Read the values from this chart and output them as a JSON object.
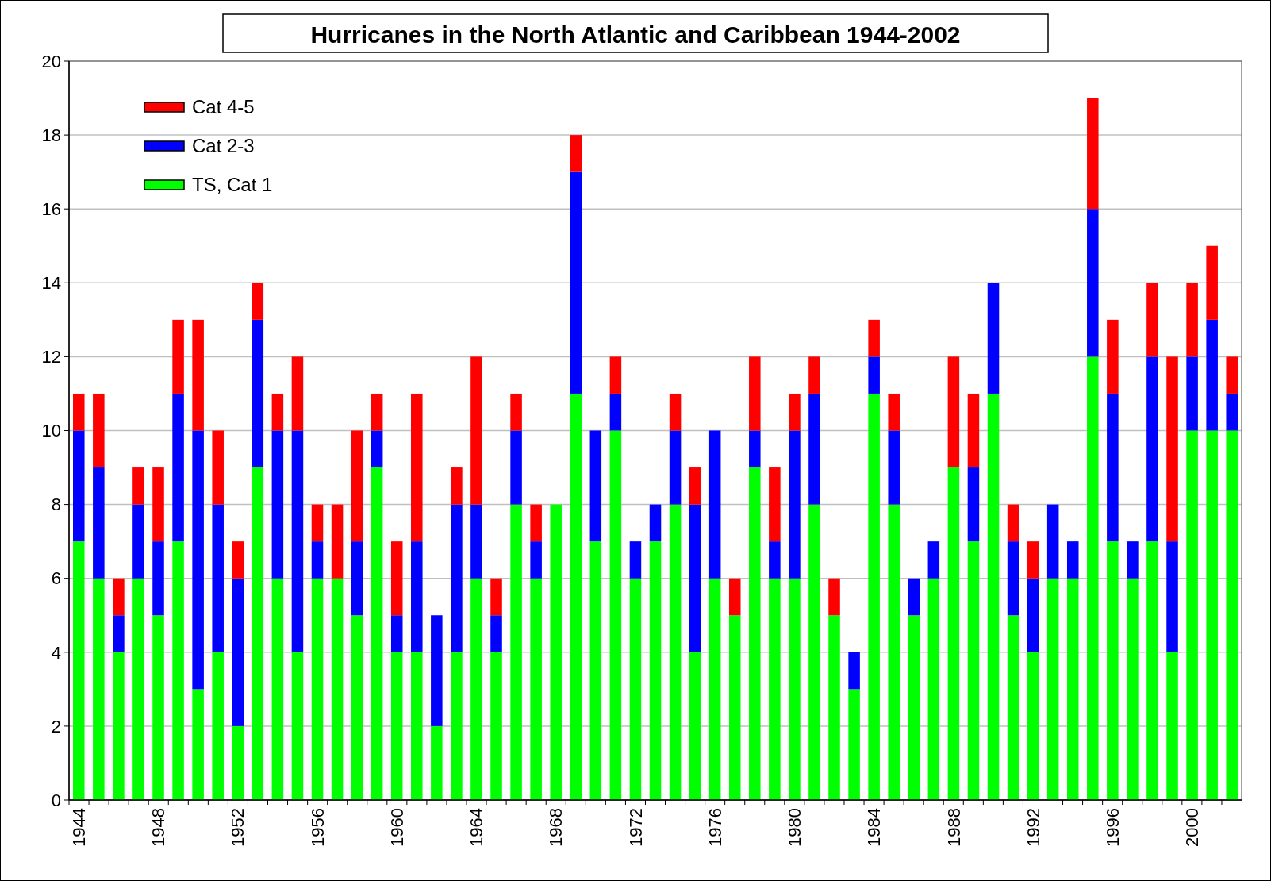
{
  "chart_data": {
    "type": "bar",
    "title": "Hurricanes in the North Atlantic and Caribbean 1944-2002",
    "stacked": true,
    "legend": "top left",
    "grid": "y",
    "ylim": [
      0,
      20
    ],
    "yticks": [
      0,
      2,
      4,
      6,
      8,
      10,
      12,
      14,
      16,
      18,
      20
    ],
    "categories": [
      "1944",
      null,
      null,
      null,
      "1948",
      null,
      null,
      null,
      "1952",
      null,
      null,
      null,
      "1956",
      null,
      null,
      null,
      "1960",
      null,
      null,
      null,
      "1964",
      null,
      null,
      null,
      "1968",
      null,
      null,
      null,
      "1972",
      null,
      null,
      null,
      "1976",
      null,
      null,
      null,
      "1980",
      null,
      null,
      null,
      "1984",
      null,
      null,
      null,
      "1988",
      null,
      null,
      null,
      "1992",
      null,
      null,
      null,
      "1996",
      null,
      null,
      null,
      "2000",
      null,
      null
    ],
    "series": [
      {
        "name": "TS, Cat 1",
        "color": "#00ff00",
        "values": [
          7,
          6,
          4,
          6,
          5,
          7,
          3,
          4,
          2,
          9,
          6,
          4,
          6,
          6,
          5,
          9,
          4,
          4,
          2,
          4,
          6,
          4,
          8,
          6,
          8,
          11,
          7,
          10,
          6,
          7,
          8,
          4,
          6,
          5,
          9,
          6,
          6,
          8,
          5,
          3,
          11,
          8,
          5,
          6,
          9,
          7,
          11,
          5,
          4,
          6,
          6,
          12,
          7,
          6,
          7,
          4,
          10,
          10,
          10
        ]
      },
      {
        "name": "Cat 2-3",
        "color": "#0000ff",
        "values": [
          3,
          3,
          1,
          2,
          2,
          4,
          7,
          4,
          4,
          4,
          4,
          6,
          1,
          0,
          2,
          1,
          1,
          3,
          3,
          4,
          2,
          1,
          2,
          1,
          0,
          6,
          3,
          1,
          1,
          1,
          2,
          4,
          4,
          0,
          1,
          1,
          4,
          3,
          0,
          1,
          1,
          2,
          1,
          1,
          0,
          2,
          3,
          2,
          2,
          2,
          1,
          4,
          4,
          1,
          5,
          3,
          2,
          3,
          1
        ]
      },
      {
        "name": "Cat 4-5",
        "color": "#ff0000",
        "values": [
          1,
          2,
          1,
          1,
          2,
          2,
          3,
          2,
          1,
          1,
          1,
          2,
          1,
          2,
          3,
          1,
          2,
          4,
          0,
          1,
          4,
          1,
          1,
          1,
          0,
          1,
          0,
          1,
          0,
          0,
          1,
          1,
          0,
          1,
          2,
          2,
          1,
          1,
          1,
          0,
          1,
          1,
          0,
          0,
          3,
          2,
          0,
          1,
          1,
          0,
          0,
          3,
          2,
          0,
          2,
          5,
          2,
          2,
          1
        ]
      }
    ]
  }
}
